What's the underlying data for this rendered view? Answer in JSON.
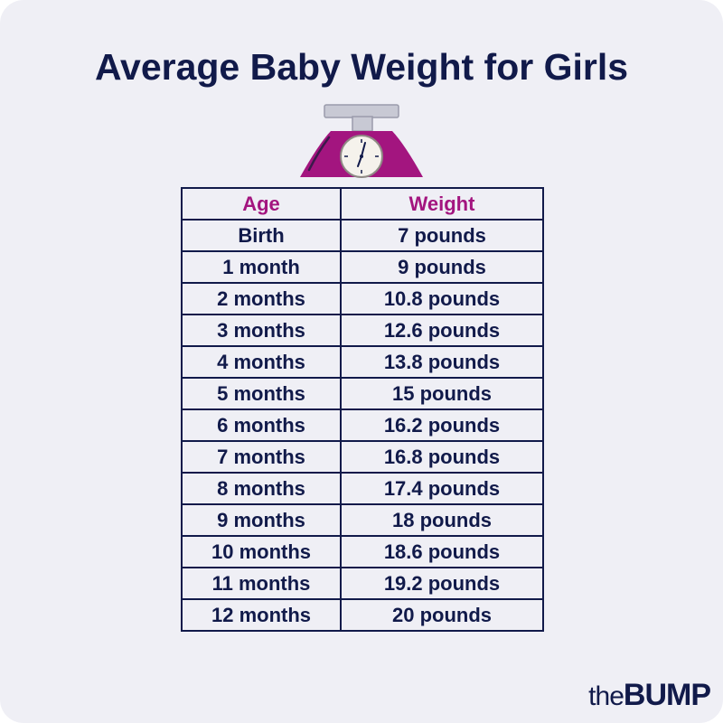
{
  "title": "Average Baby Weight for Girls",
  "colors": {
    "background": "#efeff5",
    "navy": "#111a4a",
    "header_accent": "#a3157f",
    "scale_body": "#a3157f",
    "scale_top": "#c8c9d4"
  },
  "illustration": {
    "icon": "baby-scale-icon"
  },
  "table": {
    "headers": {
      "age": "Age",
      "weight": "Weight"
    },
    "rows": [
      {
        "age": "Birth",
        "weight": "7 pounds"
      },
      {
        "age": "1 month",
        "weight": "9 pounds"
      },
      {
        "age": "2 months",
        "weight": "10.8 pounds"
      },
      {
        "age": "3 months",
        "weight": "12.6 pounds"
      },
      {
        "age": "4 months",
        "weight": "13.8 pounds"
      },
      {
        "age": "5 months",
        "weight": "15 pounds"
      },
      {
        "age": "6 months",
        "weight": "16.2 pounds"
      },
      {
        "age": "7 months",
        "weight": "16.8 pounds"
      },
      {
        "age": "8 months",
        "weight": "17.4 pounds"
      },
      {
        "age": "9 months",
        "weight": "18 pounds"
      },
      {
        "age": "10 months",
        "weight": "18.6 pounds"
      },
      {
        "age": "11 months",
        "weight": "19.2 pounds"
      },
      {
        "age": "12 months",
        "weight": "20 pounds"
      }
    ]
  },
  "brand": {
    "prefix": "the",
    "name": "BUMP"
  }
}
